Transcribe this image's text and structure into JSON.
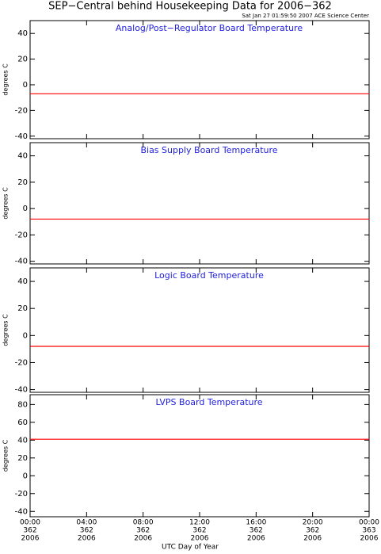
{
  "chart_data": [
    {
      "type": "line",
      "title": "SEP−Central behind Housekeeping Data for 2006−362",
      "subtitle": "Sat Jan 27 01:59:50 2007 ACE Science Center",
      "panel_title": "Analog/Post−Regulator Board Temperature",
      "ylabel": "degrees C",
      "ylim": [
        -42,
        50
      ],
      "yticks": [
        40,
        20,
        0,
        -20,
        -40
      ],
      "series": [
        {
          "color": "#ff0000",
          "x": [
            0,
            24
          ],
          "values": [
            -7,
            -7
          ]
        }
      ]
    },
    {
      "type": "line",
      "panel_title": "Bias Supply Board Temperature",
      "ylabel": "degrees C",
      "ylim": [
        -42,
        50
      ],
      "yticks": [
        40,
        20,
        0,
        -20,
        -40
      ],
      "series": [
        {
          "color": "#ff0000",
          "x": [
            0,
            24
          ],
          "values": [
            -8,
            -8
          ]
        }
      ]
    },
    {
      "type": "line",
      "panel_title": "Logic Board Temperature",
      "ylabel": "degrees C",
      "ylim": [
        -42,
        50
      ],
      "yticks": [
        40,
        20,
        0,
        -20,
        -40
      ],
      "series": [
        {
          "color": "#ff0000",
          "x": [
            0,
            24
          ],
          "values": [
            -8,
            -8
          ]
        }
      ]
    },
    {
      "type": "line",
      "panel_title": "LVPS Board Temperature",
      "ylabel": "degrees C",
      "ylim": [
        -46,
        91
      ],
      "yticks": [
        80,
        60,
        40,
        20,
        0,
        -20,
        -40
      ],
      "series": [
        {
          "color": "#ff0000",
          "x": [
            0,
            24
          ],
          "values": [
            41,
            41
          ]
        }
      ],
      "xlabel": "UTC Day of Year",
      "xlim": [
        0,
        24
      ],
      "xticks": [
        {
          "value": 0,
          "label": [
            "00:00",
            "362",
            "2006"
          ]
        },
        {
          "value": 4,
          "label": [
            "04:00",
            "362",
            "2006"
          ]
        },
        {
          "value": 8,
          "label": [
            "08:00",
            "362",
            "2006"
          ]
        },
        {
          "value": 12,
          "label": [
            "12:00",
            "362",
            "2006"
          ]
        },
        {
          "value": 16,
          "label": [
            "16:00",
            "362",
            "2006"
          ]
        },
        {
          "value": 20,
          "label": [
            "20:00",
            "362",
            "2006"
          ]
        },
        {
          "value": 24,
          "label": [
            "00:00",
            "363",
            "2006"
          ]
        }
      ]
    }
  ]
}
